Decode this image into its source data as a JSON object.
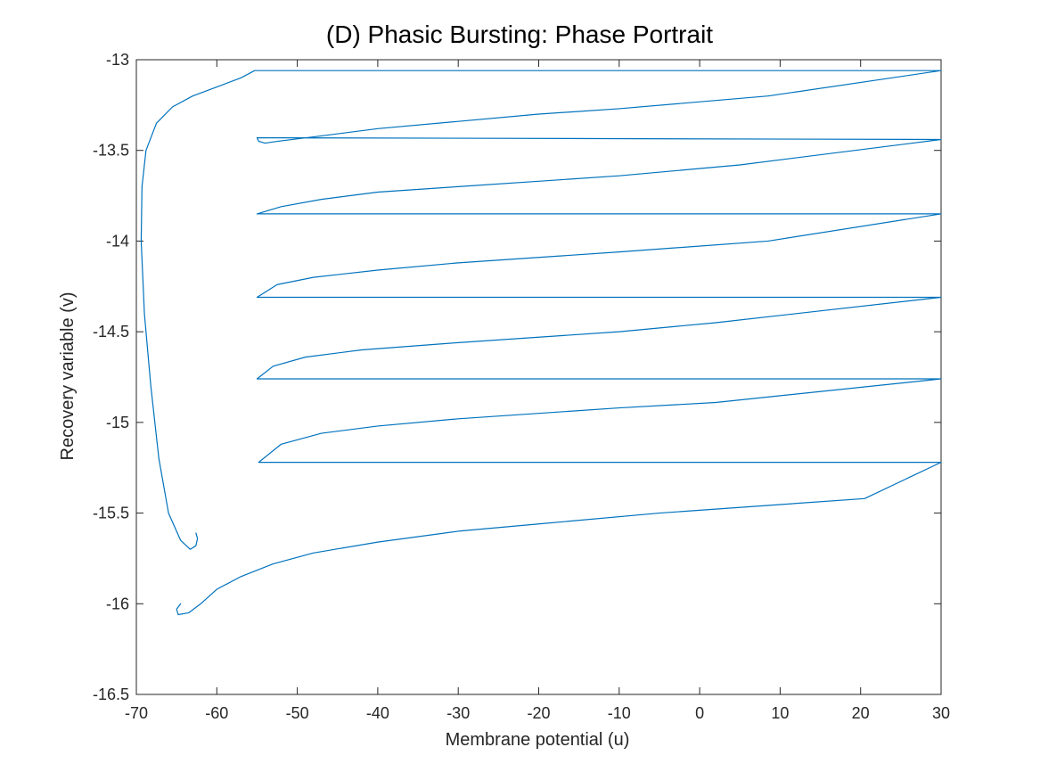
{
  "chart_data": {
    "type": "line",
    "title": "(D) Phasic Bursting: Phase Portrait",
    "xlabel": "Membrane potential (u)",
    "ylabel": "Recovery variable (v)",
    "xlim": [
      -70,
      30
    ],
    "ylim": [
      -16.5,
      -13
    ],
    "grid": false,
    "legend": "none",
    "x_ticks": [
      -70,
      -60,
      -50,
      -40,
      -30,
      -20,
      -10,
      0,
      10,
      20,
      30
    ],
    "y_ticks": [
      -16.5,
      -16,
      -15.5,
      -15,
      -14.5,
      -14,
      -13.5,
      -13
    ],
    "x_tick_labels": [
      "-70",
      "-60",
      "-50",
      "-40",
      "-30",
      "-20",
      "-10",
      "0",
      "10",
      "20",
      "30"
    ],
    "y_tick_labels": [
      "-16.5",
      "-16",
      "-15.5",
      "-15",
      "-14.5",
      "-14",
      "-13.5",
      "-13"
    ],
    "series": [
      {
        "color": "#0072BD",
        "points": [
          [
            -64.5,
            -16.0
          ],
          [
            -65.0,
            -16.03
          ],
          [
            -64.8,
            -16.06
          ],
          [
            -63.5,
            -16.05
          ],
          [
            -62.0,
            -16.0
          ],
          [
            -60.0,
            -15.92
          ],
          [
            -57.0,
            -15.85
          ],
          [
            -53.0,
            -15.78
          ],
          [
            -48.0,
            -15.72
          ],
          [
            -40.0,
            -15.66
          ],
          [
            -30.0,
            -15.6
          ],
          [
            -20.0,
            -15.56
          ],
          [
            -5.0,
            -15.5
          ],
          [
            20.5,
            -15.42
          ],
          [
            30.0,
            -15.22
          ],
          [
            -54.8,
            -15.22
          ],
          [
            -52.0,
            -15.12
          ],
          [
            -47.0,
            -15.06
          ],
          [
            -40.0,
            -15.02
          ],
          [
            -30.0,
            -14.98
          ],
          [
            -20.0,
            -14.95
          ],
          [
            -10.0,
            -14.92
          ],
          [
            2.0,
            -14.89
          ],
          [
            30.0,
            -14.76
          ],
          [
            -55.0,
            -14.76
          ],
          [
            -53.0,
            -14.69
          ],
          [
            -49.0,
            -14.64
          ],
          [
            -42.0,
            -14.6
          ],
          [
            -30.0,
            -14.56
          ],
          [
            -20.0,
            -14.53
          ],
          [
            -10.0,
            -14.5
          ],
          [
            2.0,
            -14.45
          ],
          [
            30.0,
            -14.31
          ],
          [
            -55.0,
            -14.31
          ],
          [
            -52.5,
            -14.24
          ],
          [
            -48.0,
            -14.2
          ],
          [
            -40.0,
            -14.16
          ],
          [
            -30.0,
            -14.12
          ],
          [
            -20.0,
            -14.09
          ],
          [
            -10.0,
            -14.06
          ],
          [
            8.5,
            -14.0
          ],
          [
            30.0,
            -13.85
          ],
          [
            -55.0,
            -13.85
          ],
          [
            -52.0,
            -13.81
          ],
          [
            -47.0,
            -13.77
          ],
          [
            -40.0,
            -13.73
          ],
          [
            -30.0,
            -13.7
          ],
          [
            -20.0,
            -13.67
          ],
          [
            -10.0,
            -13.64
          ],
          [
            5.0,
            -13.58
          ],
          [
            30.0,
            -13.44
          ],
          [
            -55.0,
            -13.43
          ],
          [
            -54.8,
            -13.45
          ],
          [
            -54.0,
            -13.46
          ],
          [
            -52.5,
            -13.45
          ],
          [
            -47.0,
            -13.42
          ],
          [
            -40.0,
            -13.38
          ],
          [
            -30.0,
            -13.34
          ],
          [
            -20.0,
            -13.3
          ],
          [
            -10.0,
            -13.27
          ],
          [
            8.5,
            -13.2
          ],
          [
            30.0,
            -13.06
          ],
          [
            -55.3,
            -13.06
          ],
          [
            -57.0,
            -13.1
          ],
          [
            -60.0,
            -13.15
          ],
          [
            -63.0,
            -13.2
          ],
          [
            -65.5,
            -13.26
          ],
          [
            -67.5,
            -13.35
          ],
          [
            -68.8,
            -13.5
          ],
          [
            -69.3,
            -13.7
          ],
          [
            -69.4,
            -14.0
          ],
          [
            -69.0,
            -14.4
          ],
          [
            -68.2,
            -14.8
          ],
          [
            -67.2,
            -15.2
          ],
          [
            -66.0,
            -15.5
          ],
          [
            -64.5,
            -15.65
          ],
          [
            -63.3,
            -15.7
          ],
          [
            -62.6,
            -15.68
          ],
          [
            -62.4,
            -15.64
          ],
          [
            -62.6,
            -15.61
          ]
        ]
      }
    ]
  }
}
